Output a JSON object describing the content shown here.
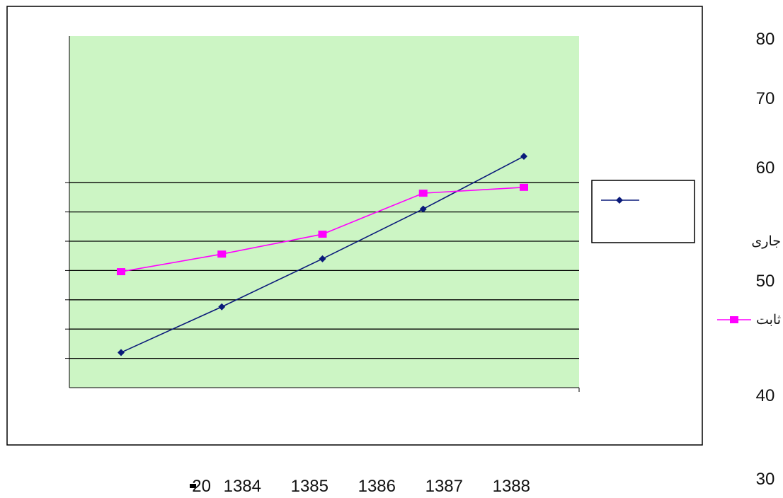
{
  "chart_data": {
    "type": "line",
    "x": [
      "1384",
      "1385",
      "1386",
      "1387",
      "1388"
    ],
    "x_tick_labels": [
      "20",
      "1384",
      "1385",
      "1386",
      "1387",
      "1388"
    ],
    "y_tick_labels": [
      "80",
      "70",
      "60",
      "50",
      "40",
      "30"
    ],
    "ylim": [
      30,
      80
    ],
    "series": [
      {
        "name": "جاری",
        "values": [
          41.0,
          48.8,
          57.0,
          65.5,
          74.5
        ],
        "color": "#0a1a7a",
        "marker": "diamond"
      },
      {
        "name": "ثابت",
        "values": [
          54.8,
          57.8,
          61.2,
          68.2,
          69.2
        ],
        "color": "#ff00ff",
        "marker": "square"
      }
    ],
    "plot_background": "#ccf5c4",
    "grid": "horizontal",
    "legend_position": "right"
  }
}
